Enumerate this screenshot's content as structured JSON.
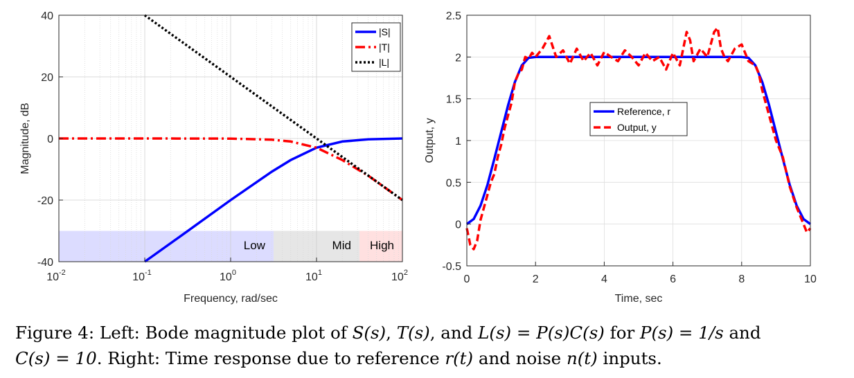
{
  "left_chart": {
    "type": "line",
    "xscale": "log",
    "xlabel": "Frequency, rad/sec",
    "ylabel": "Magnitude, dB",
    "xlim": [
      0.01,
      100
    ],
    "ylim": [
      -40,
      40
    ],
    "xticks": [
      {
        "base": "10",
        "exp": "-2",
        "value": 0.01
      },
      {
        "base": "10",
        "exp": "-1",
        "value": 0.1
      },
      {
        "base": "10",
        "exp": "0",
        "value": 1
      },
      {
        "base": "10",
        "exp": "1",
        "value": 10
      },
      {
        "base": "10",
        "exp": "2",
        "value": 100
      }
    ],
    "yticks": [
      "40",
      "20",
      "0",
      "-20",
      "-40"
    ],
    "ytick_values": [
      40,
      20,
      0,
      -20,
      -40
    ],
    "grid": true,
    "legend_position": "top-right",
    "legend": [
      {
        "label": "|S|",
        "color": "#0000ff",
        "style": "solid"
      },
      {
        "label": "|T|",
        "color": "#ff0000",
        "style": "dashdot"
      },
      {
        "label": "|L|",
        "color": "#000000",
        "style": "dotted"
      }
    ],
    "bands": [
      {
        "label": "Low",
        "from": 0.01,
        "to": 3.16,
        "y_from": -40,
        "y_to": -30,
        "color": "#dcdcff"
      },
      {
        "label": "Mid",
        "from": 3.16,
        "to": 31.6,
        "y_from": -40,
        "y_to": -30,
        "color": "#e6e6e6"
      },
      {
        "label": "High",
        "from": 31.6,
        "to": 100,
        "y_from": -40,
        "y_to": -30,
        "color": "#ffe0e0"
      }
    ],
    "series": [
      {
        "name": "|S|",
        "color": "#0000ff",
        "x": [
          0.1,
          0.3,
          1,
          3,
          5,
          10,
          20,
          40,
          100
        ],
        "y": [
          -40,
          -30.5,
          -20,
          -10.8,
          -7.0,
          -3.0,
          -1.0,
          -0.3,
          0
        ]
      },
      {
        "name": "|T|",
        "color": "#ff0000",
        "x": [
          0.01,
          0.1,
          1,
          3,
          5,
          10,
          20,
          40,
          100
        ],
        "y": [
          0,
          0,
          -0.04,
          -0.4,
          -1.0,
          -3.0,
          -7.0,
          -12.1,
          -20
        ]
      },
      {
        "name": "|L|",
        "color": "#000000",
        "x": [
          0.1,
          100
        ],
        "y": [
          40,
          -20
        ]
      }
    ]
  },
  "right_chart": {
    "type": "line",
    "xlabel": "Time, sec",
    "ylabel": "Output, y",
    "xlim": [
      0,
      10
    ],
    "ylim": [
      -0.5,
      2.5
    ],
    "xticks": [
      "0",
      "2",
      "4",
      "6",
      "8",
      "10"
    ],
    "xtick_values": [
      0,
      2,
      4,
      6,
      8,
      10
    ],
    "yticks": [
      "2.5",
      "2",
      "1.5",
      "1",
      "0.5",
      "0",
      "-0.5"
    ],
    "ytick_values": [
      2.5,
      2,
      1.5,
      1,
      0.5,
      0,
      -0.5
    ],
    "grid": true,
    "legend_position": "center",
    "legend": [
      {
        "label": "Reference, r",
        "color": "#0000ff",
        "style": "solid"
      },
      {
        "label": "Output, y",
        "color": "#ff0000",
        "style": "dashed"
      }
    ],
    "series": [
      {
        "name": "Reference, r",
        "color": "#0000ff",
        "x": [
          0,
          0.2,
          0.4,
          0.6,
          0.8,
          1.0,
          1.2,
          1.4,
          1.6,
          1.8,
          2.0,
          8.0,
          8.2,
          8.4,
          8.6,
          8.8,
          9.0,
          9.2,
          9.4,
          9.6,
          9.8,
          10.0
        ],
        "y": [
          0,
          0.06,
          0.22,
          0.47,
          0.78,
          1.1,
          1.42,
          1.7,
          1.9,
          1.99,
          2.0,
          2.0,
          1.99,
          1.9,
          1.7,
          1.42,
          1.1,
          0.78,
          0.47,
          0.22,
          0.06,
          0
        ]
      },
      {
        "name": "Output, y",
        "color": "#ff0000",
        "x": [
          0,
          0.1,
          0.2,
          0.3,
          0.4,
          0.5,
          0.6,
          0.7,
          0.8,
          0.9,
          1.0,
          1.1,
          1.2,
          1.3,
          1.4,
          1.5,
          1.6,
          1.7,
          1.8,
          1.9,
          2.0,
          2.2,
          2.4,
          2.6,
          2.8,
          3.0,
          3.2,
          3.4,
          3.6,
          3.8,
          4.0,
          4.2,
          4.4,
          4.6,
          4.8,
          5.0,
          5.2,
          5.4,
          5.6,
          5.8,
          6.0,
          6.2,
          6.4,
          6.5,
          6.6,
          6.8,
          7.0,
          7.2,
          7.3,
          7.4,
          7.5,
          7.6,
          7.8,
          8.0,
          8.2,
          8.4,
          8.5,
          8.6,
          8.8,
          9.0,
          9.2,
          9.4,
          9.6,
          9.8,
          9.9,
          10.0
        ],
        "y": [
          -0.05,
          -0.25,
          -0.3,
          -0.2,
          0.05,
          0.2,
          0.35,
          0.5,
          0.6,
          0.8,
          0.95,
          1.15,
          1.3,
          1.45,
          1.7,
          1.8,
          1.85,
          2.0,
          1.98,
          2.05,
          2.0,
          2.1,
          2.25,
          2.0,
          2.08,
          1.92,
          2.1,
          1.95,
          2.05,
          1.9,
          2.06,
          2.0,
          1.95,
          2.08,
          2.0,
          1.9,
          2.05,
          1.95,
          2.0,
          1.85,
          2.05,
          1.9,
          2.3,
          2.2,
          1.95,
          2.1,
          2.0,
          2.3,
          2.35,
          2.1,
          2.0,
          1.95,
          2.1,
          2.15,
          1.95,
          1.9,
          1.8,
          1.6,
          1.3,
          1.0,
          0.8,
          0.45,
          0.2,
          0.0,
          -0.1,
          -0.05
        ]
      }
    ]
  },
  "caption": {
    "line1_prefix": "Figure 4:  Left:  Bode magnitude plot of ",
    "line1_S": "S(s)",
    "line1_sep1": ", ",
    "line1_T": "T(s)",
    "line1_sep2": ", and ",
    "line1_L": "L(s) = P(s)C(s)",
    "line1_for": " for ",
    "line1_P": "P(s) = 1/s",
    "line1_and": " and",
    "line2_C": "C(s) = 10",
    "line2_text1": ".  Right: Time response due to reference ",
    "line2_r": "r(t)",
    "line2_text2": " and noise ",
    "line2_n": "n(t)",
    "line2_text3": " inputs."
  }
}
